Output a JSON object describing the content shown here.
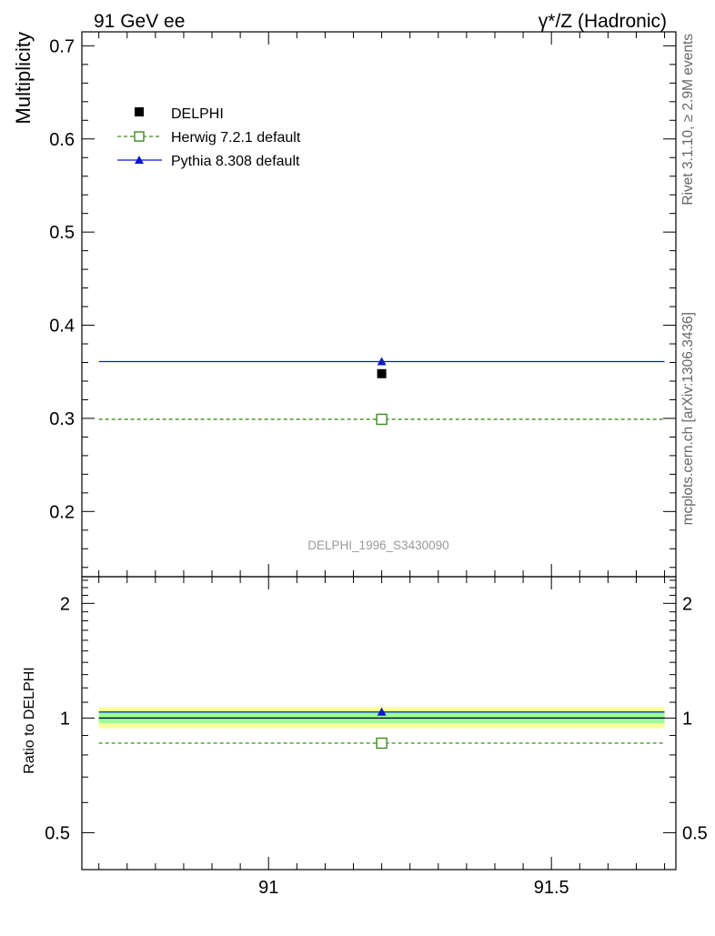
{
  "header": {
    "left_title": "91 GeV ee",
    "right_title": "γ*/Z (Hadronic)"
  },
  "side_text": {
    "rivet": "Rivet 3.1.10, ≥ 2.9M events",
    "mcplots": "mcplots.cern.ch [arXiv:1306.3436]"
  },
  "colors": {
    "delphi": "#000000",
    "herwig": "#3d8a1d",
    "pythia": "#0a19c8",
    "band_inner": "#99ff99",
    "band_outer": "#ffff99",
    "watermark": "#999999"
  },
  "chart_data": [
    {
      "type": "scatter",
      "ylabel": "Multiplicity",
      "ylim": [
        0.13,
        0.715
      ],
      "xlim": [
        90.67,
        91.72
      ],
      "yticks": [
        {
          "value": 0.2,
          "label": "0.2"
        },
        {
          "value": 0.3,
          "label": "0.3"
        },
        {
          "value": 0.4,
          "label": "0.4"
        },
        {
          "value": 0.5,
          "label": "0.5"
        },
        {
          "value": 0.6,
          "label": "0.6"
        },
        {
          "value": 0.7,
          "label": "0.7"
        }
      ],
      "annotation": "DELPHI_1996_S3430090",
      "legend": {
        "placement": "top-left",
        "entries": [
          "DELPHI",
          "Herwig 7.2.1 default",
          "Pythia 8.308 default"
        ]
      },
      "series": [
        {
          "name": "DELPHI",
          "x": [
            91.2
          ],
          "y": [
            0.348
          ],
          "marker": "filled-square"
        },
        {
          "name": "Herwig 7.2.1 default",
          "x": [
            91.2
          ],
          "y": [
            0.299
          ],
          "xrange": [
            90.7,
            91.7
          ],
          "marker": "open-square",
          "line": "dashed"
        },
        {
          "name": "Pythia 8.308 default",
          "x": [
            91.2
          ],
          "y": [
            0.361
          ],
          "xrange": [
            90.7,
            91.7
          ],
          "marker": "filled-triangle",
          "line": "solid"
        }
      ]
    },
    {
      "type": "scatter",
      "ylabel": "Ratio to DELPHI",
      "ylim": [
        0.4,
        2.35
      ],
      "xlim": [
        90.67,
        91.72
      ],
      "yticks": [
        {
          "value": 0.5,
          "label": "0.5"
        },
        {
          "value": 1,
          "label": "1"
        },
        {
          "value": 2,
          "label": "2"
        }
      ],
      "xticks": [
        {
          "value": 91,
          "label": "91"
        },
        {
          "value": 91.5,
          "label": "91.5"
        }
      ],
      "bands": {
        "inner": [
          0.97,
          1.04
        ],
        "outer": [
          0.94,
          1.07
        ]
      },
      "series": [
        {
          "name": "Herwig 7.2.1 default",
          "x": [
            91.2
          ],
          "y": [
            0.859
          ]
        },
        {
          "name": "Pythia 8.308 default",
          "x": [
            91.2
          ],
          "y": [
            1.037
          ]
        }
      ]
    }
  ]
}
